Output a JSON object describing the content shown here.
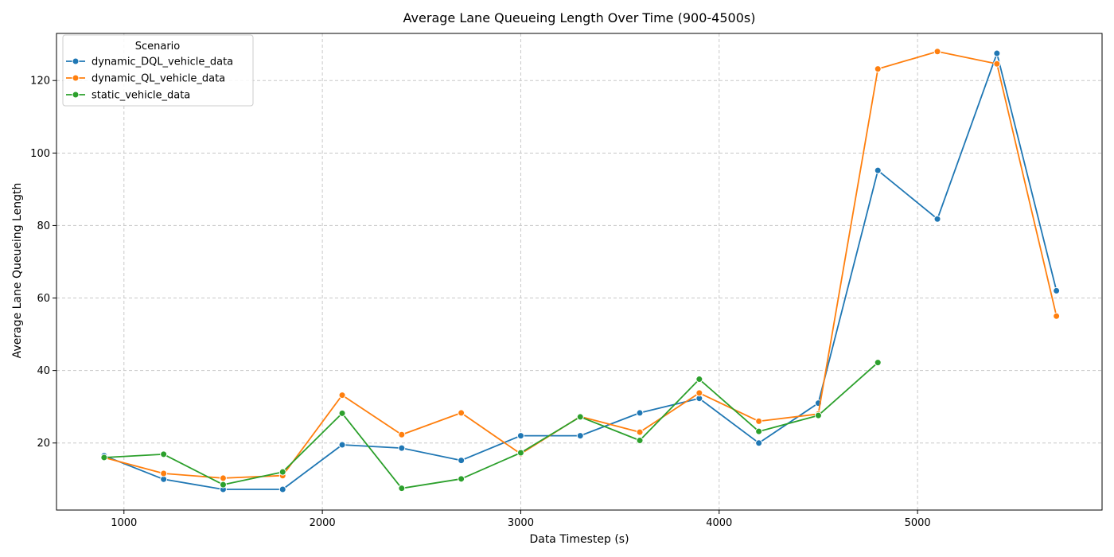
{
  "chart_data": {
    "type": "line",
    "title": "Average Lane Queueing Length Over Time (900-4500s)",
    "xlabel": "Data Timestep (s)",
    "ylabel": "Average Lane Queueing Length",
    "xlim": [
      660,
      5930
    ],
    "ylim": [
      1.5,
      133
    ],
    "xticks": [
      1000,
      2000,
      3000,
      4000,
      5000
    ],
    "yticks": [
      20,
      40,
      60,
      80,
      100,
      120
    ],
    "grid": true,
    "legend": {
      "title": "Scenario",
      "placement": "top-left"
    },
    "series": [
      {
        "name": "dynamic_DQL_vehicle_data",
        "color": "#1f77b4",
        "x": [
          900,
          1200,
          1500,
          1800,
          2100,
          2400,
          2700,
          3000,
          3300,
          3600,
          3900,
          4200,
          4500,
          4800,
          5100,
          5400,
          5700
        ],
        "values": [
          16.5,
          10,
          7.2,
          7.2,
          19.5,
          18.6,
          15.2,
          22,
          22,
          28.3,
          32.3,
          20,
          31,
          95.2,
          81.8,
          127.5,
          62
        ]
      },
      {
        "name": "dynamic_QL_vehicle_data",
        "color": "#ff7f0e",
        "x": [
          900,
          1200,
          1500,
          1800,
          2100,
          2400,
          2700,
          3000,
          3300,
          3600,
          3900,
          4200,
          4500,
          4800,
          5100,
          5400,
          5700
        ],
        "values": [
          16,
          11.6,
          10.3,
          11,
          33.2,
          22.3,
          28.3,
          17,
          27.3,
          23,
          33.8,
          26,
          28,
          123.2,
          128,
          124.6,
          55
        ]
      },
      {
        "name": "static_vehicle_data",
        "color": "#2ca02c",
        "x": [
          900,
          1200,
          1500,
          1800,
          2100,
          2400,
          2700,
          3000,
          3300,
          3600,
          3900,
          4200,
          4500,
          4800
        ],
        "values": [
          16,
          16.9,
          8.5,
          12,
          28.2,
          7.5,
          10.1,
          17.3,
          27.2,
          20.7,
          37.6,
          23.2,
          27.6,
          42.2
        ]
      }
    ]
  }
}
